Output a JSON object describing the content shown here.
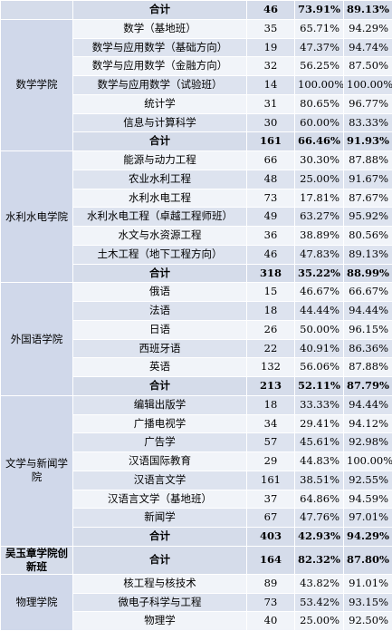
{
  "groups": [
    {
      "college": "",
      "rows": [],
      "total": {
        "label": "合计",
        "n": "46",
        "p1": "73.91%",
        "p2": "89.13%"
      }
    },
    {
      "college": "数学学院",
      "rows": [
        {
          "major": "数学（基地班）",
          "n": "35",
          "p1": "65.71%",
          "p2": "94.29%"
        },
        {
          "major": "数学与应用数学（基础方向）",
          "n": "19",
          "p1": "47.37%",
          "p2": "94.74%"
        },
        {
          "major": "数学与应用数学（金融方向）",
          "n": "32",
          "p1": "56.25%",
          "p2": "87.50%"
        },
        {
          "major": "数学与应用数学（试验班）",
          "n": "14",
          "p1": "100.00%",
          "p2": "100.00%"
        },
        {
          "major": "统计学",
          "n": "31",
          "p1": "80.65%",
          "p2": "96.77%"
        },
        {
          "major": "信息与计算科学",
          "n": "30",
          "p1": "60.00%",
          "p2": "83.33%"
        }
      ],
      "total": {
        "label": "合计",
        "n": "161",
        "p1": "66.46%",
        "p2": "91.93%"
      }
    },
    {
      "college": "水利水电学院",
      "rows": [
        {
          "major": "能源与动力工程",
          "n": "66",
          "p1": "30.30%",
          "p2": "87.88%"
        },
        {
          "major": "农业水利工程",
          "n": "48",
          "p1": "25.00%",
          "p2": "91.67%"
        },
        {
          "major": "水利水电工程",
          "n": "73",
          "p1": "17.81%",
          "p2": "87.67%"
        },
        {
          "major": "水利水电工程（卓越工程师班）",
          "n": "49",
          "p1": "63.27%",
          "p2": "95.92%"
        },
        {
          "major": "水文与水资源工程",
          "n": "36",
          "p1": "38.89%",
          "p2": "80.56%"
        },
        {
          "major": "土木工程（地下工程方向）",
          "n": "46",
          "p1": "47.83%",
          "p2": "89.13%"
        }
      ],
      "total": {
        "label": "合计",
        "n": "318",
        "p1": "35.22%",
        "p2": "88.99%"
      }
    },
    {
      "college": "外国语学院",
      "rows": [
        {
          "major": "俄语",
          "n": "15",
          "p1": "46.67%",
          "p2": "66.67%"
        },
        {
          "major": "法语",
          "n": "18",
          "p1": "44.44%",
          "p2": "94.44%"
        },
        {
          "major": "日语",
          "n": "26",
          "p1": "50.00%",
          "p2": "96.15%"
        },
        {
          "major": "西班牙语",
          "n": "22",
          "p1": "40.91%",
          "p2": "86.36%"
        },
        {
          "major": "英语",
          "n": "132",
          "p1": "56.06%",
          "p2": "87.88%"
        }
      ],
      "total": {
        "label": "合计",
        "n": "213",
        "p1": "52.11%",
        "p2": "87.79%"
      }
    },
    {
      "college": "文学与新闻学院",
      "rows": [
        {
          "major": "编辑出版学",
          "n": "18",
          "p1": "33.33%",
          "p2": "94.44%"
        },
        {
          "major": "广播电视学",
          "n": "34",
          "p1": "29.41%",
          "p2": "94.12%"
        },
        {
          "major": "广告学",
          "n": "57",
          "p1": "45.61%",
          "p2": "92.98%"
        },
        {
          "major": "汉语国际教育",
          "n": "29",
          "p1": "44.83%",
          "p2": "100.00%"
        },
        {
          "major": "汉语言文学",
          "n": "161",
          "p1": "38.51%",
          "p2": "92.55%"
        },
        {
          "major": "汉语言文学（基地班）",
          "n": "37",
          "p1": "64.86%",
          "p2": "94.59%"
        },
        {
          "major": "新闻学",
          "n": "67",
          "p1": "47.76%",
          "p2": "97.01%"
        }
      ],
      "total": {
        "label": "合计",
        "n": "403",
        "p1": "42.93%",
        "p2": "94.29%"
      }
    },
    {
      "college": "吴玉章学院创新班",
      "rows": [],
      "total": {
        "label": "合计",
        "n": "164",
        "p1": "82.32%",
        "p2": "87.80%"
      }
    },
    {
      "college": "物理学院",
      "rows": [
        {
          "major": "核工程与核技术",
          "n": "89",
          "p1": "43.82%",
          "p2": "91.01%"
        },
        {
          "major": "微电子科学与工程",
          "n": "73",
          "p1": "53.42%",
          "p2": "93.15%"
        },
        {
          "major": "物理学",
          "n": "40",
          "p1": "25.00%",
          "p2": "92.50%"
        }
      ],
      "total": null
    }
  ]
}
